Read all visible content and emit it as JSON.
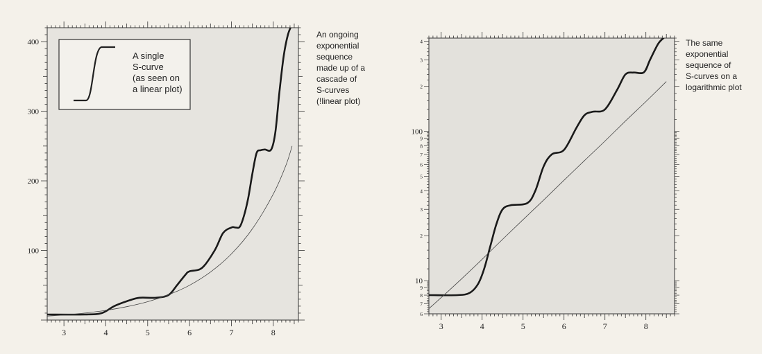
{
  "chart_data": [
    {
      "type": "line",
      "title": "",
      "xlabel": "",
      "ylabel": "",
      "scale": "linear",
      "xlim": [
        2.6,
        8.6
      ],
      "ylim": [
        0,
        420
      ],
      "xticks": [
        "3",
        "4",
        "5",
        "6",
        "7",
        "8"
      ],
      "yticks": [
        "100",
        "200",
        "300",
        "400"
      ],
      "annotation": [
        "An ongoing",
        "exponential",
        "sequence",
        "made up of a",
        "cascade of",
        "S-curves",
        "(!linear plot)"
      ],
      "inset": {
        "label": [
          "A single",
          "S-curve",
          "(as seen on",
          "a linear plot)"
        ]
      },
      "series": [
        {
          "style": "thick",
          "x": [
            2.6,
            3.5,
            3.9,
            4.2,
            4.5,
            4.8,
            5.2,
            5.5,
            5.7,
            5.9,
            6.0,
            6.3,
            6.6,
            6.8,
            7.0,
            7.1,
            7.2,
            7.3,
            7.4,
            7.5,
            7.6,
            7.7,
            7.8,
            7.95,
            8.05,
            8.15,
            8.25,
            8.35,
            8.45
          ],
          "y": [
            8,
            8,
            10,
            20,
            27,
            32,
            32,
            36,
            50,
            65,
            70,
            75,
            100,
            125,
            133,
            133,
            134,
            150,
            175,
            210,
            240,
            244,
            245,
            245,
            270,
            330,
            380,
            410,
            425
          ]
        },
        {
          "style": "thin",
          "x": [
            2.6,
            3.0,
            3.5,
            4.0,
            4.5,
            5.0,
            5.5,
            6.0,
            6.5,
            7.0,
            7.5,
            8.0,
            8.3,
            8.45
          ],
          "y": [
            5.7,
            7.3,
            10.1,
            13.9,
            19.2,
            26.4,
            36.4,
            50,
            69,
            95,
            131,
            181,
            222,
            250
          ]
        }
      ]
    },
    {
      "type": "line",
      "title": "",
      "xlabel": "",
      "ylabel": "",
      "scale": "log",
      "xlim": [
        2.7,
        8.7
      ],
      "ylim": [
        6,
        420
      ],
      "xticks": [
        "3",
        "4",
        "5",
        "6",
        "7",
        "8"
      ],
      "yticks": [
        {
          "v": 6,
          "t": "6"
        },
        {
          "v": 7,
          "t": "7"
        },
        {
          "v": 8,
          "t": "8"
        },
        {
          "v": 9,
          "t": "9"
        },
        {
          "v": 10,
          "t": "10"
        },
        {
          "v": 20,
          "t": "2"
        },
        {
          "v": 30,
          "t": "3"
        },
        {
          "v": 40,
          "t": "4"
        },
        {
          "v": 50,
          "t": "5"
        },
        {
          "v": 60,
          "t": "6"
        },
        {
          "v": 70,
          "t": "7"
        },
        {
          "v": 80,
          "t": "8"
        },
        {
          "v": 90,
          "t": "9"
        },
        {
          "v": 100,
          "t": "100"
        },
        {
          "v": 200,
          "t": "2"
        },
        {
          "v": 300,
          "t": "3"
        },
        {
          "v": 400,
          "t": "4"
        }
      ],
      "annotation": [
        "The same",
        "exponential",
        "sequence of",
        "S-curves on a",
        "logarithmic plot"
      ],
      "series": [
        {
          "style": "thick",
          "x": [
            2.7,
            3.4,
            3.7,
            3.9,
            4.05,
            4.2,
            4.35,
            4.5,
            4.7,
            5.1,
            5.3,
            5.5,
            5.7,
            6.0,
            6.3,
            6.5,
            6.7,
            7.0,
            7.3,
            7.5,
            7.7,
            7.95,
            8.1,
            8.3,
            8.45
          ],
          "y": [
            8,
            8,
            8.3,
            9.5,
            12,
            17,
            24,
            30,
            32,
            33,
            40,
            58,
            70,
            75,
            105,
            128,
            135,
            140,
            190,
            240,
            247,
            248,
            300,
            385,
            425
          ]
        },
        {
          "style": "thin",
          "x": [
            2.7,
            3.0,
            3.5,
            4.0,
            4.5,
            5.0,
            5.5,
            6.0,
            6.5,
            7.0,
            7.5,
            8.0,
            8.5
          ],
          "y": [
            6.5,
            7.7,
            10.3,
            13.9,
            18.9,
            25.6,
            34.6,
            47,
            63.6,
            86,
            117,
            158,
            215
          ]
        }
      ]
    }
  ]
}
